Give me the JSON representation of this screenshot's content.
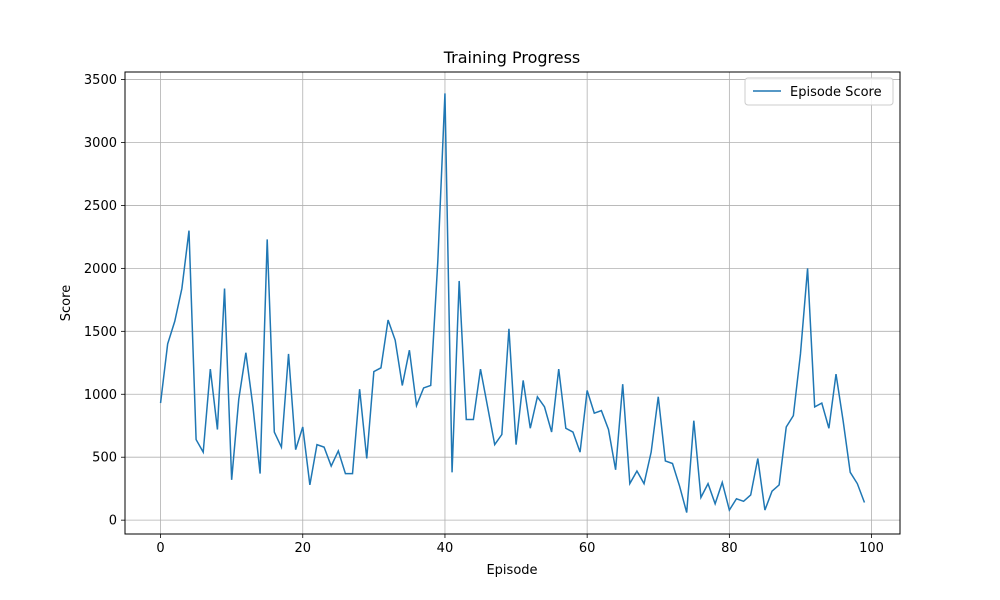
{
  "chart_data": {
    "type": "line",
    "title": "Training Progress",
    "xlabel": "Episode",
    "ylabel": "Score",
    "xlim": [
      -5,
      104
    ],
    "ylim": [
      -110,
      3560
    ],
    "xticks": [
      0,
      20,
      40,
      60,
      80,
      100
    ],
    "yticks": [
      0,
      500,
      1000,
      1500,
      2000,
      2500,
      3000,
      3500
    ],
    "grid": true,
    "legend_position": "top-right",
    "line_color": "#1f77b4",
    "series": [
      {
        "name": "Episode Score",
        "x": [
          0,
          1,
          2,
          3,
          4,
          5,
          6,
          7,
          8,
          9,
          10,
          11,
          12,
          13,
          14,
          15,
          16,
          17,
          18,
          19,
          20,
          21,
          22,
          23,
          24,
          25,
          26,
          27,
          28,
          29,
          30,
          31,
          32,
          33,
          34,
          35,
          36,
          37,
          38,
          39,
          40,
          41,
          42,
          43,
          44,
          45,
          46,
          47,
          48,
          49,
          50,
          51,
          52,
          53,
          54,
          55,
          56,
          57,
          58,
          59,
          60,
          61,
          62,
          63,
          64,
          65,
          66,
          67,
          68,
          69,
          70,
          71,
          72,
          73,
          74,
          75,
          76,
          77,
          78,
          79,
          80,
          81,
          82,
          83,
          84,
          85,
          86,
          87,
          88,
          89,
          90,
          91,
          92,
          93,
          94,
          95,
          96,
          97,
          98,
          99
        ],
        "values": [
          930,
          1400,
          1580,
          1840,
          2300,
          640,
          540,
          1200,
          720,
          1840,
          320,
          960,
          1330,
          900,
          370,
          2230,
          700,
          580,
          1320,
          560,
          740,
          280,
          600,
          580,
          430,
          550,
          370,
          370,
          1040,
          490,
          1180,
          1210,
          1590,
          1430,
          1070,
          1350,
          910,
          1050,
          1070,
          2060,
          3390,
          380,
          1900,
          800,
          800,
          1200,
          900,
          600,
          680,
          1520,
          600,
          1110,
          730,
          980,
          900,
          700,
          1200,
          730,
          700,
          540,
          1030,
          850,
          870,
          720,
          400,
          1080,
          290,
          390,
          290,
          540,
          980,
          470,
          450,
          270,
          60,
          790,
          180,
          290,
          130,
          300,
          80,
          170,
          150,
          200,
          490,
          80,
          230,
          280,
          740,
          830,
          1320,
          2000,
          900,
          930,
          730,
          1160,
          790,
          380,
          290,
          140
        ]
      }
    ]
  }
}
